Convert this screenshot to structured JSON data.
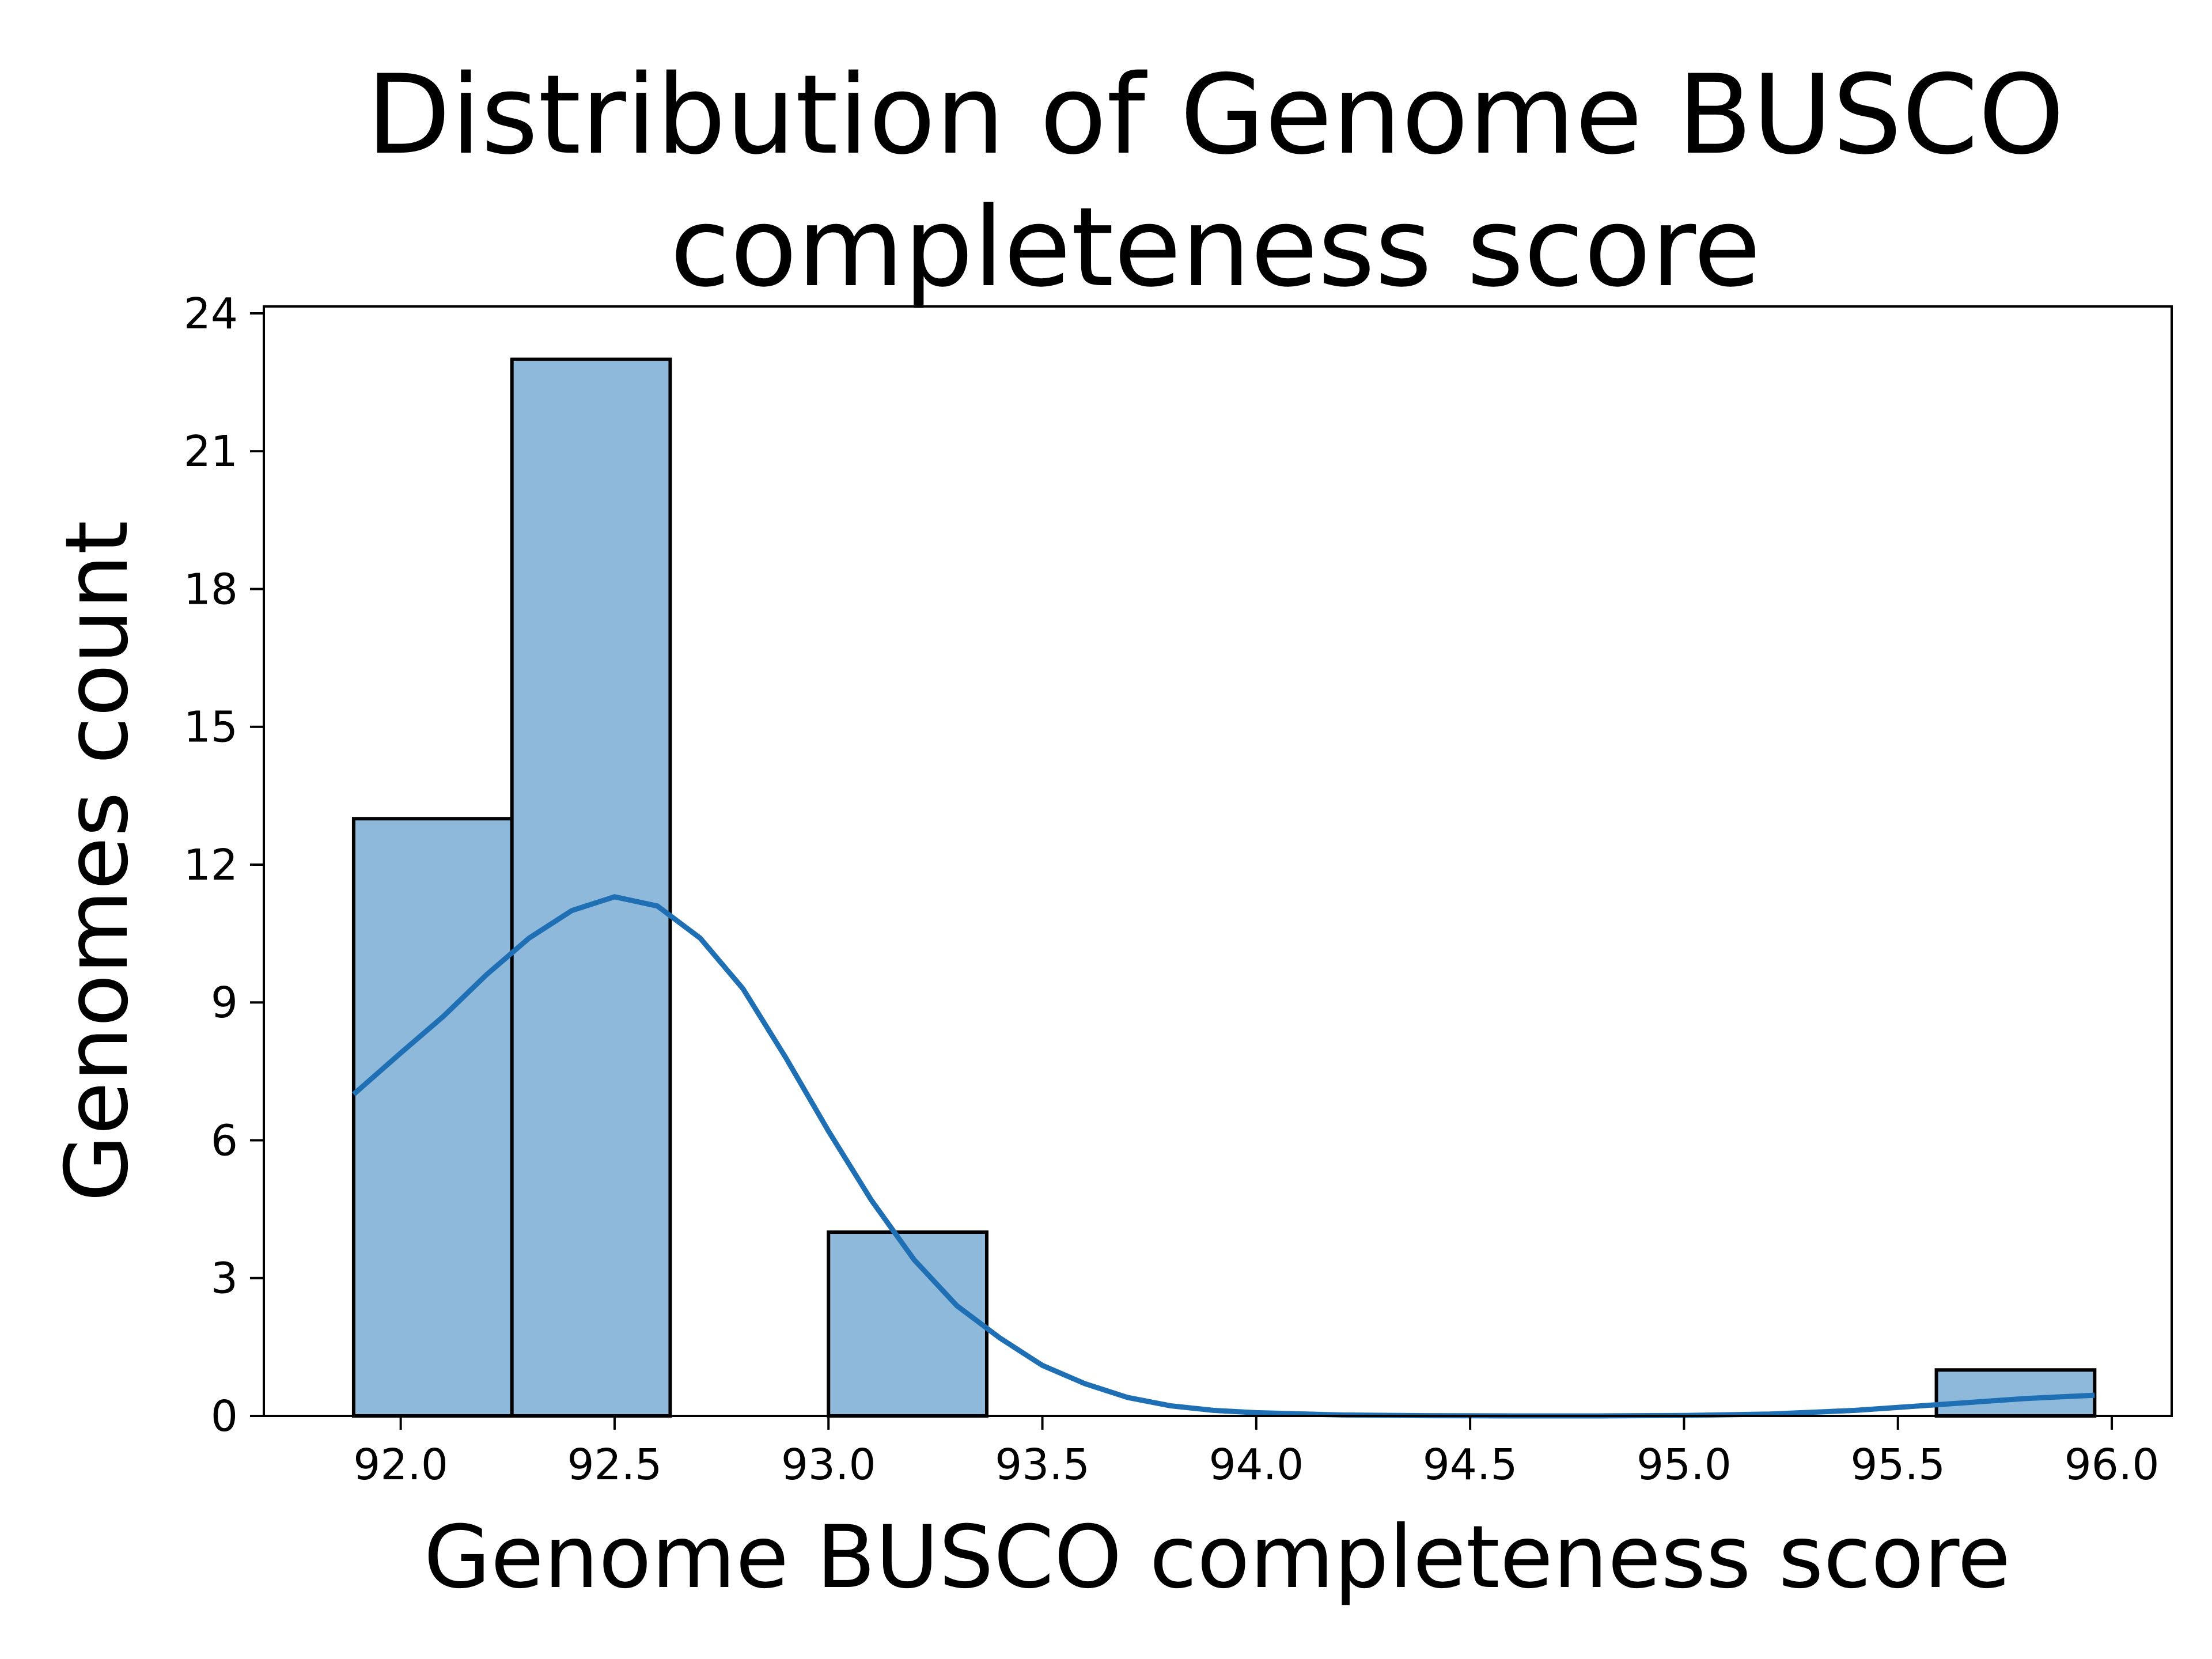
{
  "chart_data": {
    "type": "bar",
    "subtype": "histogram-with-kde",
    "title_lines": [
      "Distribution of Genome BUSCO",
      "completeness score"
    ],
    "xlabel": "Genome BUSCO completeness score",
    "ylabel": "Genomes count",
    "xlim": [
      91.68,
      96.14
    ],
    "ylim": [
      0,
      24.15
    ],
    "xticks": [
      "92.0",
      "92.5",
      "93.0",
      "93.5",
      "94.0",
      "94.5",
      "95.0",
      "95.5",
      "96.0"
    ],
    "yticks": [
      "0",
      "3",
      "6",
      "9",
      "12",
      "15",
      "18",
      "21",
      "24"
    ],
    "bins": [
      {
        "start": 91.89,
        "end": 92.26,
        "count": 13
      },
      {
        "start": 92.26,
        "end": 92.63,
        "count": 23
      },
      {
        "start": 92.63,
        "end": 93.0,
        "count": 0
      },
      {
        "start": 93.0,
        "end": 93.37,
        "count": 4
      },
      {
        "start": 93.37,
        "end": 93.74,
        "count": 0
      },
      {
        "start": 93.74,
        "end": 94.11,
        "count": 0
      },
      {
        "start": 94.11,
        "end": 94.48,
        "count": 0
      },
      {
        "start": 94.48,
        "end": 94.85,
        "count": 0
      },
      {
        "start": 94.85,
        "end": 95.22,
        "count": 0
      },
      {
        "start": 95.22,
        "end": 95.59,
        "count": 0
      },
      {
        "start": 95.59,
        "end": 95.96,
        "count": 1
      }
    ],
    "kde": {
      "x": [
        91.89,
        92.0,
        92.1,
        92.2,
        92.3,
        92.4,
        92.5,
        92.6,
        92.7,
        92.8,
        92.9,
        93.0,
        93.1,
        93.2,
        93.3,
        93.4,
        93.5,
        93.6,
        93.7,
        93.8,
        93.9,
        94.0,
        94.2,
        94.4,
        94.6,
        94.8,
        95.0,
        95.2,
        95.4,
        95.6,
        95.8,
        95.96
      ],
      "y": [
        7.0,
        7.9,
        8.7,
        9.6,
        10.4,
        11.0,
        11.3,
        11.1,
        10.4,
        9.3,
        7.8,
        6.2,
        4.7,
        3.4,
        2.4,
        1.7,
        1.1,
        0.7,
        0.4,
        0.22,
        0.12,
        0.07,
        0.02,
        0.005,
        0.0,
        0.0,
        0.01,
        0.04,
        0.12,
        0.25,
        0.38,
        0.45
      ]
    },
    "bar_color": "#8fb9db",
    "bar_edge_color": "#000000",
    "kde_color": "#1f6fb4",
    "grid": false,
    "legend": "none"
  }
}
